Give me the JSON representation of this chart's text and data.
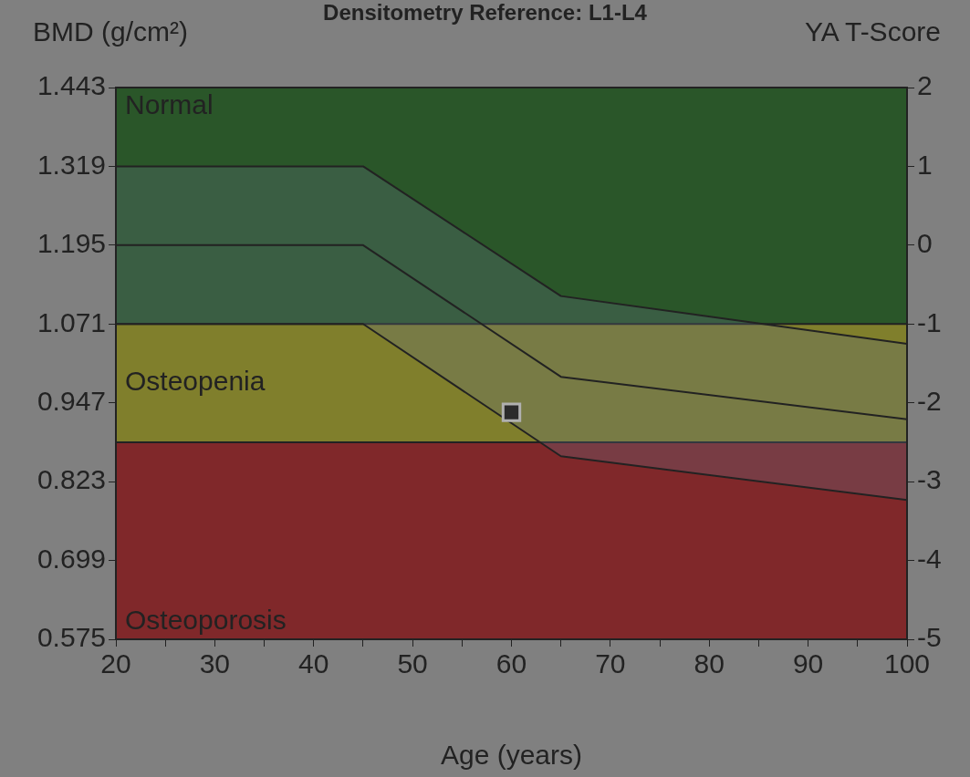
{
  "chart_data": {
    "type": "line",
    "title": "Densitometry Reference: L1-L4",
    "ylabel": "BMD (g/cm²)",
    "y2label": "YA T-Score",
    "xlabel": "Age (years)",
    "xlim": [
      20,
      100
    ],
    "xticks": [
      20,
      {
        "value": 25,
        "label": null
      },
      30,
      {
        "value": 35,
        "label": null
      },
      40,
      {
        "value": 45,
        "label": null
      },
      50,
      {
        "value": 55,
        "label": null
      },
      60,
      {
        "value": 65,
        "label": null
      },
      70,
      {
        "value": 75,
        "label": null
      },
      80,
      {
        "value": 85,
        "label": null
      },
      90,
      {
        "value": 95,
        "label": null
      },
      100
    ],
    "ylim": [
      0.575,
      1.443
    ],
    "yticks": [
      0.575,
      0.699,
      0.823,
      0.947,
      1.071,
      1.195,
      1.319,
      1.443
    ],
    "y2lim": [
      -5,
      2
    ],
    "y2ticks": [
      -5,
      -4,
      -3,
      -2,
      -1,
      0,
      1,
      2
    ],
    "bands": [
      {
        "axis": "y",
        "from": 1.071,
        "to": 1.443,
        "label": "Normal",
        "color": "#2a5629"
      },
      {
        "axis": "y",
        "from": 0.885,
        "to": 1.071,
        "label": "Osteopenia",
        "color": "#807f2c"
      },
      {
        "axis": "y",
        "from": 0.575,
        "to": 0.885,
        "label": "Osteoporosis",
        "color": "#80282a"
      }
    ],
    "ref_lines": [
      {
        "axis": "y",
        "value": 1.071,
        "color": "#222222"
      },
      {
        "axis": "y",
        "value": 0.885,
        "color": "#222222"
      }
    ],
    "series": [
      {
        "color": "#222222",
        "x": [
          20,
          45,
          65,
          100
        ],
        "values": [
          1.195,
          1.195,
          0.988,
          0.921
        ],
        "lower": [
          1.071,
          1.071,
          0.863,
          0.794
        ],
        "upper": [
          1.319,
          1.319,
          1.115,
          1.04
        ]
      },
      {
        "color": "#222222",
        "x": [
          20,
          45,
          65,
          100
        ],
        "values": [
          1.319,
          1.319,
          1.115,
          1.04
        ]
      },
      {
        "color": "#222222",
        "x": [
          20,
          45,
          65,
          100
        ],
        "values": [
          1.071,
          1.071,
          0.863,
          0.794
        ]
      },
      {
        "type": "scatter",
        "color": "#2b2b2b",
        "x": [
          60
        ],
        "values": [
          0.932
        ],
        "marker": "square"
      }
    ],
    "line_style": "solid",
    "legend": false
  }
}
